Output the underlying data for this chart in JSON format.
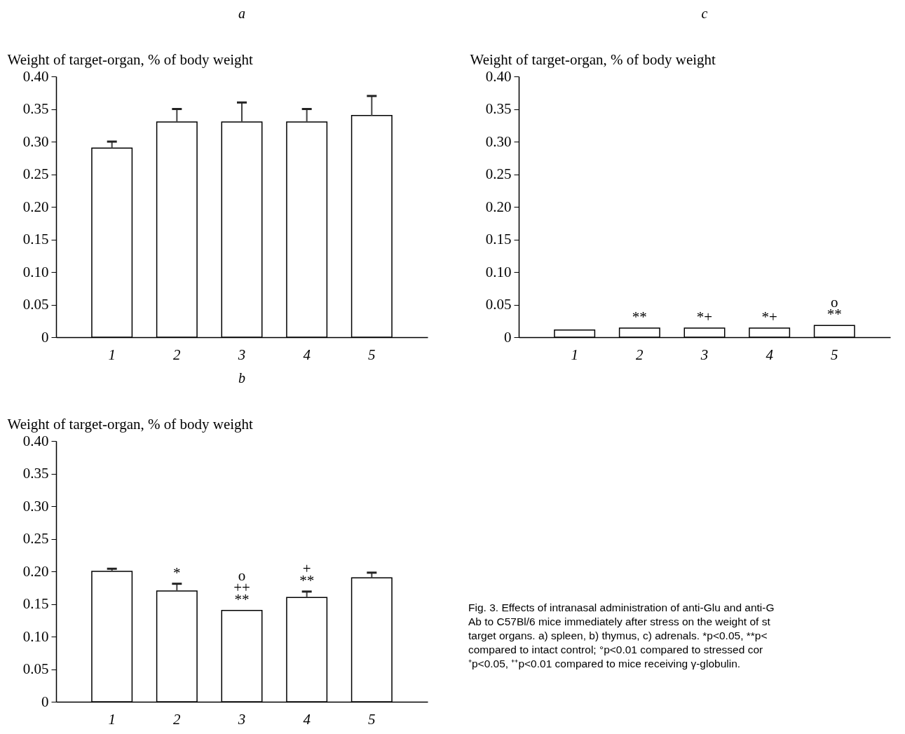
{
  "chart_data": [
    {
      "type": "bar",
      "title": "a",
      "ylabel": "Weight of target-organ, % of body weight",
      "categories": [
        "1",
        "2",
        "3",
        "4",
        "5"
      ],
      "values": [
        0.29,
        0.33,
        0.33,
        0.33,
        0.34
      ],
      "errors": [
        0.01,
        0.02,
        0.03,
        0.02,
        0.03
      ],
      "color": "#ffffff",
      "ylim": [
        0,
        0.4
      ],
      "yticks": [
        0,
        0.05,
        {
          "value": 0.1,
          "label": "0.10"
        },
        0.15,
        {
          "value": 0.2,
          "label": "0.20"
        },
        0.25,
        {
          "value": 0.3,
          "label": "0.30"
        },
        0.35,
        {
          "value": 0.4,
          "label": "0.40"
        }
      ]
    },
    {
      "type": "bar",
      "title": "c",
      "ylabel": "Weight of target-organ, % of body weight",
      "categories": [
        "1",
        "2",
        "3",
        "4",
        "5"
      ],
      "values": [
        0.011,
        0.014,
        0.014,
        0.014,
        0.018
      ],
      "color": "#ffffff",
      "ylim": [
        0,
        0.4
      ],
      "yticks": [
        0,
        0.05,
        {
          "value": 0.1,
          "label": "0.10"
        },
        0.15,
        {
          "value": 0.2,
          "label": "0.20"
        },
        0.25,
        {
          "value": 0.3,
          "label": "0.30"
        },
        0.35,
        {
          "value": 0.4,
          "label": "0.40"
        }
      ],
      "annotations": [
        {
          "text": "**",
          "x": "2",
          "y": 0.014
        },
        {
          "text": "*+",
          "x": "3",
          "y": 0.014
        },
        {
          "text": "*+",
          "x": "4",
          "y": 0.014
        },
        {
          "text": "**",
          "x": "5",
          "y": 0.018
        },
        {
          "text": "o",
          "x": "5",
          "y": 0.018
        }
      ]
    },
    {
      "type": "bar",
      "title": "b",
      "ylabel": "Weight of target-organ, % of body weight",
      "categories": [
        "1",
        "2",
        "3",
        "4",
        "5"
      ],
      "values": [
        0.2,
        0.17,
        0.14,
        0.16,
        0.19
      ],
      "errors": [
        0.004,
        0.011,
        null,
        0.009,
        0.008
      ],
      "color": "#ffffff",
      "ylim": [
        0,
        0.4
      ],
      "yticks": [
        0,
        0.05,
        {
          "value": 0.1,
          "label": "0.10"
        },
        0.15,
        {
          "value": 0.2,
          "label": "0.20"
        },
        0.25,
        {
          "value": 0.3,
          "label": "0.30"
        },
        0.35,
        {
          "value": 0.4,
          "label": "0.40"
        }
      ],
      "annotations": [
        {
          "text": "*",
          "x": "2",
          "y": 0.181
        },
        {
          "text": "**",
          "x": "3",
          "y": 0.14
        },
        {
          "text": "++",
          "x": "3",
          "y": 0.14
        },
        {
          "text": "o",
          "x": "3",
          "y": 0.14
        },
        {
          "text": "**",
          "x": "4",
          "y": 0.169
        },
        {
          "text": "+",
          "x": "4",
          "y": 0.169
        }
      ]
    },
    {
      "type": "other",
      "annotations": [
        "Fig. 3. Effects of intranasal administration of anti-Glu and anti-G",
        "Ab to C57Bl/6 mice immediately after stress on the weight of st",
        "target organs. a) spleen, b) thymus, c) adrenals. *p<0.05, **p<",
        "compared to intact control; °p<0.01 compared to stressed cor",
        "⁺p<0.05, ⁺⁺p<0.01 compared to mice receiving γ-globulin."
      ]
    }
  ]
}
